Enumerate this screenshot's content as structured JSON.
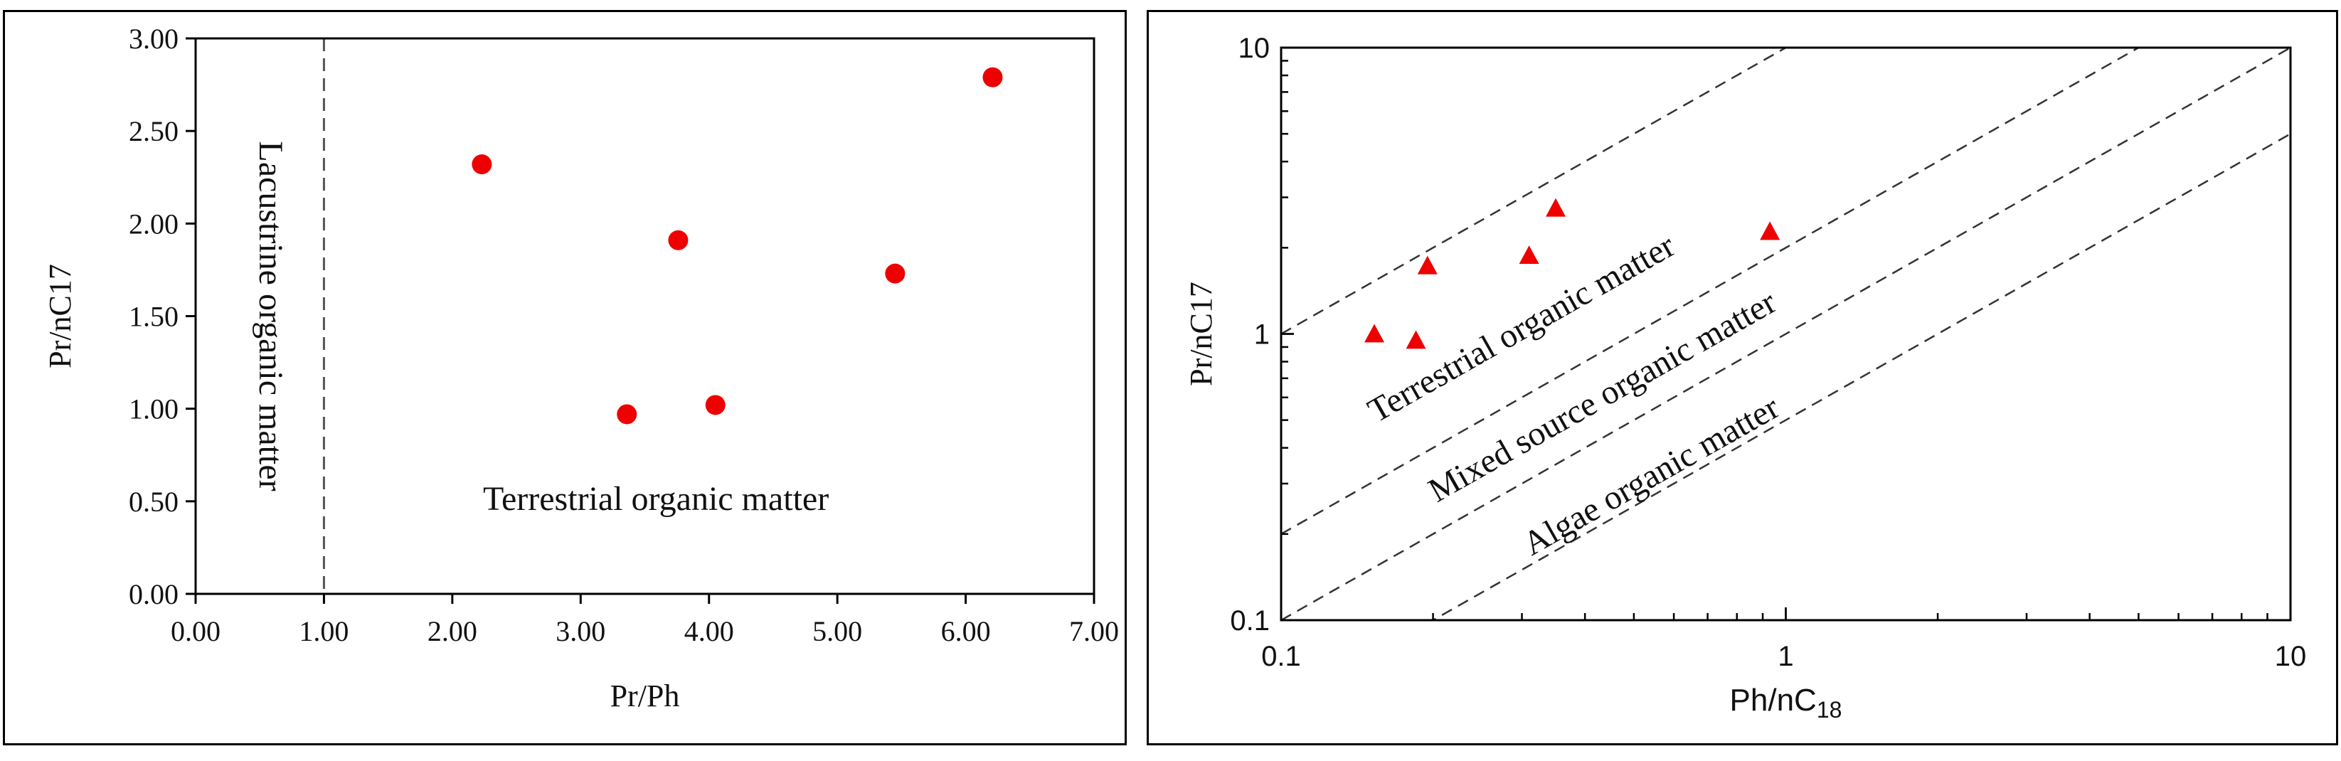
{
  "chart_data": [
    {
      "type": "scatter",
      "xlabel": "Pr/Ph",
      "ylabel": "Pr/nC17",
      "xlim": [
        0,
        7
      ],
      "ylim": [
        0,
        3
      ],
      "x_ticks": [
        "0.00",
        "1.00",
        "2.00",
        "3.00",
        "4.00",
        "5.00",
        "6.00",
        "7.00"
      ],
      "y_ticks": [
        "0.00",
        "0.50",
        "1.00",
        "1.50",
        "2.00",
        "2.50",
        "3.00"
      ],
      "x_tick_values": [
        0,
        1,
        2,
        3,
        4,
        5,
        6,
        7
      ],
      "y_tick_values": [
        0,
        0.5,
        1,
        1.5,
        2,
        2.5,
        3
      ],
      "divider_x": 1,
      "series": [
        {
          "name": "samples",
          "marker": "circle",
          "x": [
            2.23,
            3.36,
            3.76,
            4.05,
            5.45,
            6.21
          ],
          "y": [
            2.32,
            0.97,
            1.91,
            1.02,
            1.73,
            2.79
          ]
        }
      ],
      "annotations": {
        "lacustrine": "Lacustrine organic matter",
        "terrestrial": "Terrestrial organic matter"
      },
      "colors": {
        "marker": "#ee0000",
        "axis": "#000000",
        "divider": "#555555"
      }
    },
    {
      "type": "scatter",
      "scale": "log-log",
      "xlabel_main": "Ph/nC",
      "xlabel_sub": "18",
      "ylabel": "Pr/nC17",
      "xlim": [
        0.1,
        10
      ],
      "ylim": [
        0.1,
        10
      ],
      "x_ticks": [
        "0.1",
        "1",
        "10"
      ],
      "y_ticks": [
        "0.1",
        "1",
        "10"
      ],
      "x_tick_values": [
        0.1,
        1,
        10
      ],
      "y_tick_values": [
        0.1,
        1,
        10
      ],
      "boundary_lines": [
        {
          "slope_factor": 10
        },
        {
          "slope_factor": 2
        },
        {
          "slope_factor": 1
        },
        {
          "slope_factor": 0.5
        }
      ],
      "series": [
        {
          "name": "samples",
          "marker": "triangle",
          "x": [
            0.153,
            0.185,
            0.195,
            0.31,
            0.35,
            0.93
          ],
          "y": [
            1.0,
            0.95,
            1.73,
            1.88,
            2.75,
            2.28
          ]
        }
      ],
      "annotations": {
        "terrestrial": "Terrestrial organic matter",
        "mixed": "Mixed source organic matter",
        "algae": "Algae organic matter"
      },
      "colors": {
        "marker": "#ee0000",
        "axis": "#000000",
        "guide": "#333333"
      }
    }
  ]
}
